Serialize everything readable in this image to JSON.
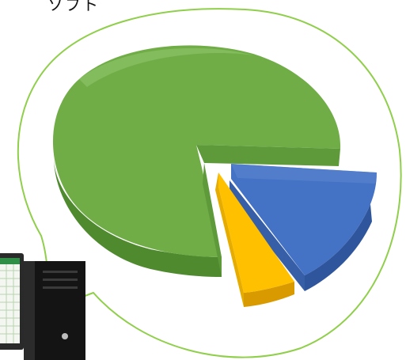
{
  "header": {
    "top_text": "ソフト"
  },
  "colors": {
    "bubble_outline": "#8fcf4a",
    "slice_green": "#70ad47",
    "slice_blue": "#4472c4",
    "slice_yellow": "#ffc000",
    "computer_body": "#1f1f1f"
  },
  "icons": {
    "computer": "desktop-tower-icon",
    "monitor": "spreadsheet-monitor-icon"
  }
}
